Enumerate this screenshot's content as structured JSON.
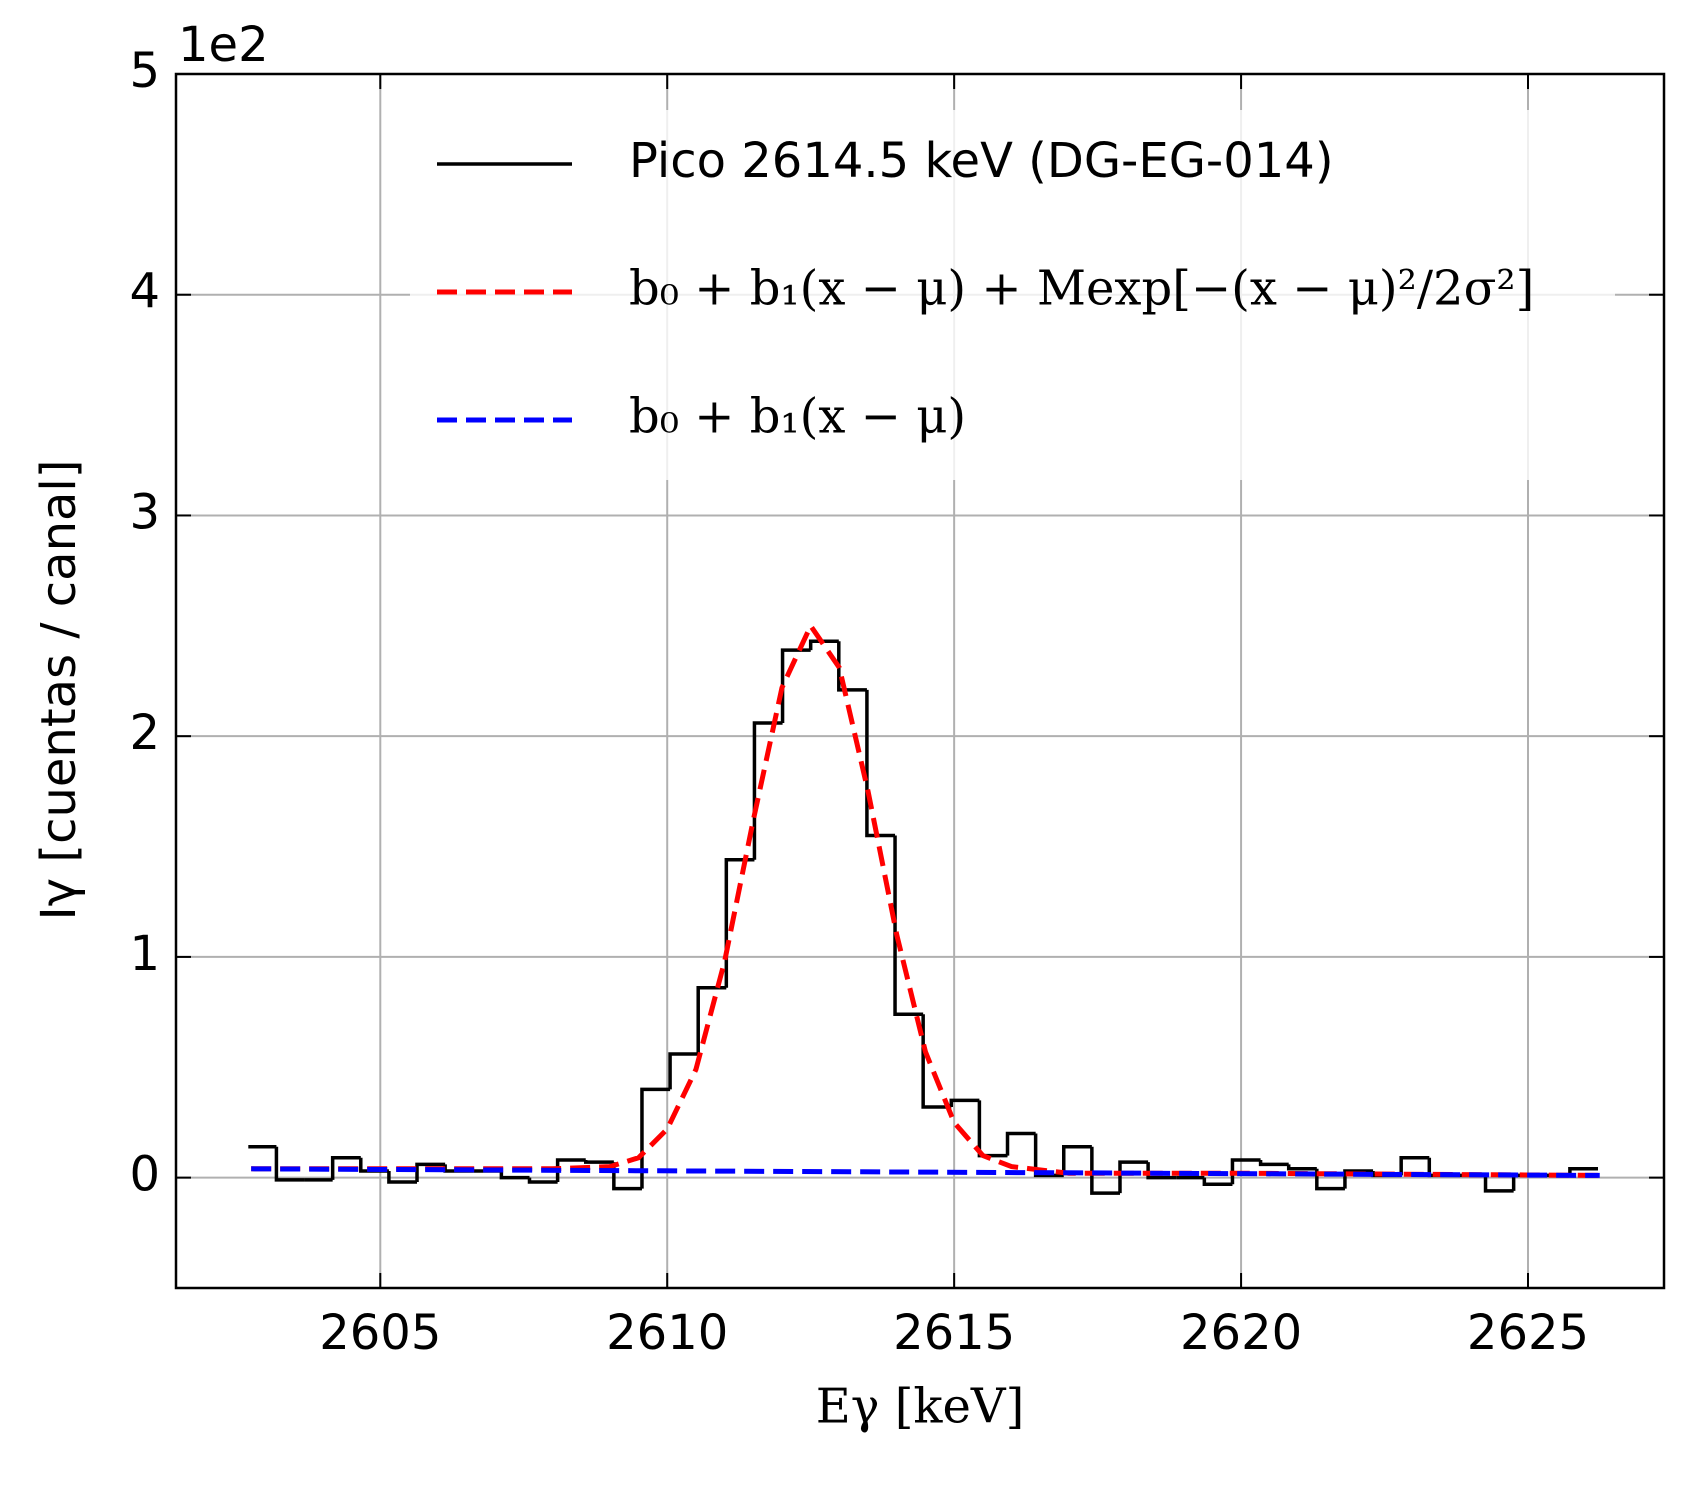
{
  "chart_data": {
    "type": "histogram",
    "xlabel": "Eγ [keV]",
    "ylabel": "Iγ [cuentas / canal]",
    "y_offset_label": "1e2",
    "name": "Pico 2614.5 keV (DG-EG-014)",
    "color": "#000000",
    "bins": [
      2602.7,
      2603.19,
      2603.68,
      2604.17,
      2604.66,
      2605.15,
      2605.64,
      2606.13,
      2606.62,
      2607.11,
      2607.6,
      2608.09,
      2608.58,
      2609.07,
      2609.56,
      2610.05,
      2610.54,
      2611.03,
      2611.52,
      2612.01,
      2612.5,
      2612.99,
      2613.48,
      2613.97,
      2614.46,
      2614.95,
      2615.44,
      2615.93,
      2616.42,
      2616.91,
      2617.4,
      2617.89,
      2618.38,
      2618.87,
      2619.36,
      2619.85,
      2620.34,
      2620.83,
      2621.32,
      2621.81,
      2622.3,
      2622.79,
      2623.28,
      2623.77,
      2624.26,
      2624.75,
      2625.24,
      2625.73,
      2626.22
    ],
    "values": [
      0.14,
      -0.01,
      -0.01,
      0.09,
      0.03,
      -0.02,
      0.06,
      0.03,
      0.03,
      0.0,
      -0.02,
      0.08,
      0.07,
      -0.05,
      0.4,
      0.56,
      0.86,
      1.44,
      2.06,
      2.39,
      2.43,
      2.21,
      1.55,
      0.74,
      0.32,
      0.35,
      0.1,
      0.2,
      0.01,
      0.14,
      -0.07,
      0.07,
      0.0,
      0.0,
      -0.03,
      0.08,
      0.06,
      0.04,
      -0.05,
      0.03,
      0.01,
      0.09,
      0.01,
      0.01,
      -0.06,
      0.01,
      0.01,
      0.04
    ],
    "series": [
      {
        "type": "line",
        "name": "b₀ + b₁(x − μ) + Mexp[−(x − μ)²/2σ²]",
        "color": "#ff0000",
        "linestyle": "dashed",
        "x": [
          2602.75,
          2606,
          2608,
          2609,
          2609.5,
          2610,
          2610.5,
          2611,
          2611.5,
          2612,
          2612.5,
          2613,
          2613.5,
          2614,
          2614.5,
          2615,
          2615.5,
          2616,
          2617,
          2620,
          2626.25
        ],
        "values": [
          0.04,
          0.04,
          0.04,
          0.05,
          0.09,
          0.22,
          0.49,
          0.98,
          1.62,
          2.22,
          2.5,
          2.31,
          1.75,
          1.1,
          0.57,
          0.25,
          0.1,
          0.05,
          0.02,
          0.02,
          0.01
        ]
      },
      {
        "type": "line",
        "name": "b₀ + b₁(x − μ)",
        "color": "#0000ff",
        "linestyle": "dashed",
        "x": [
          2602.75,
          2626.25
        ],
        "values": [
          0.04,
          0.01
        ]
      }
    ],
    "xlim": [
      2601.44,
      2627.37
    ],
    "ylim": [
      -0.5,
      5
    ],
    "xticks": [
      2605,
      2610,
      2615,
      2620,
      2625
    ],
    "yticks": [
      0,
      1,
      2,
      3,
      4,
      5
    ],
    "grid": true,
    "legend": "upper right"
  }
}
